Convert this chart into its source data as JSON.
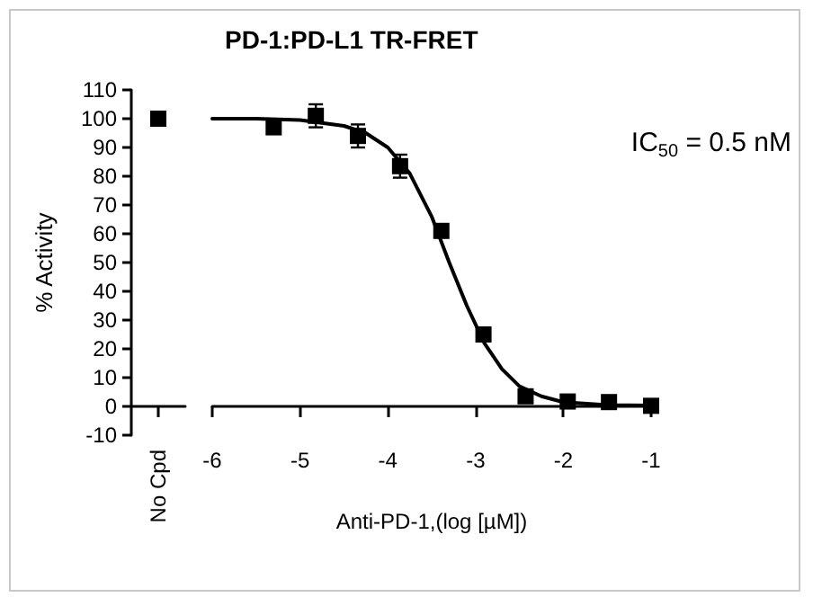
{
  "chart_data": [
    {
      "type": "scatter",
      "ylabel": "% Activity",
      "categories": [
        "No Cpd"
      ],
      "ylim": [
        -10,
        110
      ],
      "yticks": [
        -10,
        0,
        10,
        20,
        30,
        40,
        50,
        60,
        70,
        80,
        90,
        100,
        110
      ],
      "marker": "square",
      "tick_labels": "xy",
      "grid": false,
      "series": [
        {
          "color": "#000000",
          "values": [
            100
          ]
        }
      ]
    },
    {
      "type": "scatter",
      "title": "PD-1:PD-L1 TR-FRET",
      "xlabel": "Anti-PD-1,(log [µM])",
      "annotations": [
        "IC$_{50}$ = 0.5 nM"
      ],
      "xlim": [
        -6,
        -1
      ],
      "xticks": [
        -6,
        -5,
        -4,
        -3,
        -2,
        -1
      ],
      "ylim": [
        -10,
        110
      ],
      "marker": "square",
      "tick_labels": "x",
      "grid": false,
      "series": [
        {
          "color": "#000000",
          "x": [
            -5.3,
            -4.82,
            -4.34,
            -3.86,
            -3.39,
            -2.91,
            -2.43,
            -1.95,
            -1.48,
            -1.0
          ],
          "values": [
            97,
            101,
            94,
            83.5,
            61,
            25,
            3.5,
            1.7,
            1.5,
            0.2
          ],
          "errors": [
            null,
            4,
            4,
            4,
            null,
            null,
            null,
            null,
            null,
            null
          ]
        },
        {
          "type": "line",
          "color": "#000000",
          "marker": "none",
          "line_style": "solid",
          "x": [
            -6,
            -5.5,
            -5,
            -4.5,
            -4.25,
            -4,
            -3.75,
            -3.5,
            -3.3,
            -3.1,
            -2.9,
            -2.7,
            -2.5,
            -2.25,
            -2,
            -1.5,
            -1
          ],
          "values": [
            100,
            100,
            99.5,
            97.5,
            95,
            90,
            81,
            66,
            50,
            35,
            22,
            13,
            7,
            3.5,
            1.5,
            0.5,
            0.3
          ]
        }
      ]
    }
  ]
}
